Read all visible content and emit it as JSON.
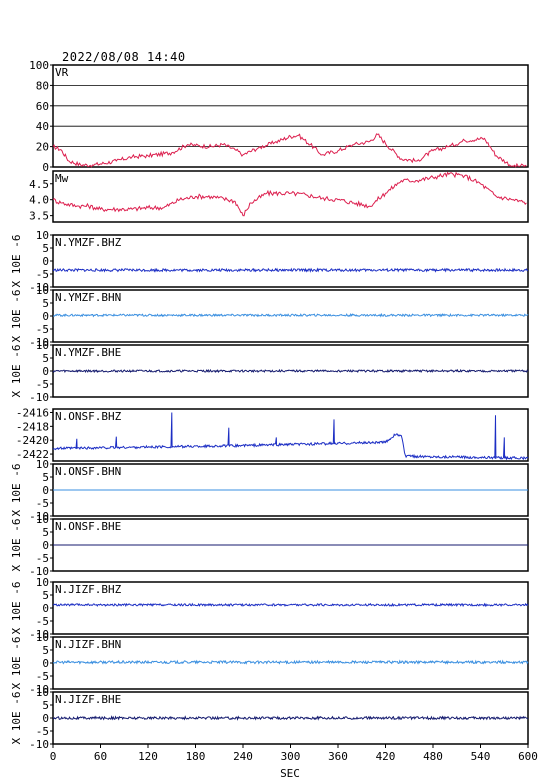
{
  "header": {
    "timestamp": "2022/08/08 14:40"
  },
  "chart_data": {
    "type": "line",
    "xlabel": "SEC",
    "xlim": [
      0,
      600
    ],
    "x_ticks": [
      0,
      60,
      120,
      180,
      240,
      300,
      360,
      420,
      480,
      540,
      600
    ],
    "panels": [
      {
        "label": "VR",
        "color": "#dc1f4e",
        "ylim": [
          0,
          100
        ],
        "y_ticks": [
          0,
          20,
          40,
          60,
          80,
          100
        ],
        "grid": true,
        "x": [
          0,
          10,
          20,
          35,
          50,
          60,
          80,
          100,
          120,
          150,
          170,
          180,
          200,
          215,
          230,
          240,
          260,
          280,
          300,
          310,
          325,
          340,
          360,
          380,
          400,
          410,
          420,
          440,
          460,
          480,
          500,
          520,
          545,
          560,
          580,
          598
        ],
        "y": [
          20,
          17,
          6,
          2,
          2,
          3,
          6,
          10,
          11,
          14,
          22,
          21,
          20,
          22,
          17,
          12,
          19,
          24,
          30,
          31,
          22,
          12,
          16,
          22,
          25,
          32,
          23,
          8,
          6,
          16,
          20,
          26,
          28,
          11,
          1,
          1
        ]
      },
      {
        "label": "Mw",
        "color": "#dc1f4e",
        "ylim": [
          3.3,
          4.9
        ],
        "y_ticks": [
          3.5,
          4.0,
          4.5
        ],
        "y_tick_labels": [
          "3.5",
          "4.0",
          "4.5"
        ],
        "grid": false,
        "x": [
          0,
          10,
          30,
          45,
          60,
          80,
          100,
          120,
          140,
          160,
          180,
          200,
          220,
          230,
          240,
          250,
          270,
          300,
          320,
          340,
          360,
          380,
          400,
          420,
          440,
          460,
          480,
          500,
          520,
          540,
          560,
          580,
          598
        ],
        "y": [
          4.0,
          3.9,
          3.8,
          3.8,
          3.7,
          3.7,
          3.7,
          3.75,
          3.75,
          4.0,
          4.1,
          4.1,
          4.0,
          3.95,
          3.5,
          3.9,
          4.2,
          4.2,
          4.15,
          4.05,
          4.0,
          3.9,
          3.8,
          4.2,
          4.6,
          4.6,
          4.7,
          4.8,
          4.75,
          4.5,
          4.1,
          4.0,
          3.9
        ]
      },
      {
        "label": "N.YMZF.BHZ",
        "color": "#1c2ec4",
        "ylim": [
          -10,
          10
        ],
        "y_ticks": [
          -10,
          -5,
          0,
          5,
          10
        ],
        "y_tick_labels": [
          "-10",
          "-5",
          "0",
          "5",
          "10"
        ],
        "unit": "X 10E -6",
        "baseline": -3.5,
        "amp": 0.5
      },
      {
        "label": "N.YMZF.BHN",
        "color": "#3a8fe0",
        "ylim": [
          -10,
          10
        ],
        "y_ticks": [
          -10,
          -5,
          0,
          5,
          10
        ],
        "y_tick_labels": [
          "-10",
          "-5",
          "0",
          "5",
          "10"
        ],
        "unit": "X 10E -6",
        "baseline": 0.3,
        "amp": 0.4
      },
      {
        "label": "N.YMZF.BHE",
        "color": "#141a6e",
        "ylim": [
          -10,
          10
        ],
        "y_ticks": [
          -10,
          -5,
          0,
          5,
          10
        ],
        "y_tick_labels": [
          "-10",
          "-5",
          "0",
          "5",
          "10"
        ],
        "unit": "X 10E -6",
        "baseline": 0.0,
        "amp": 0.4
      },
      {
        "label": "N.ONSF.BHZ",
        "color": "#1c2ec4",
        "ylim": [
          -2423,
          -2415.5
        ],
        "y_ticks": [
          -2422,
          -2420,
          -2418,
          -2416
        ],
        "y_tick_labels": [
          "-2422",
          "-2420",
          "-2418",
          "-2416"
        ],
        "unit": "",
        "baseline": -2421.2,
        "amp": 0.15
      },
      {
        "label": "N.ONSF.BHN",
        "color": "#3a8fe0",
        "ylim": [
          -10,
          10
        ],
        "y_ticks": [
          -10,
          -5,
          0,
          5,
          10
        ],
        "y_tick_labels": [
          "-10",
          "-5",
          "0",
          "5",
          "10"
        ],
        "unit": "X 10E -6",
        "baseline": 0.0,
        "amp": 0.0
      },
      {
        "label": "N.ONSF.BHE",
        "color": "#141a6e",
        "ylim": [
          -10,
          10
        ],
        "y_ticks": [
          -10,
          -5,
          0,
          5,
          10
        ],
        "y_tick_labels": [
          "-10",
          "-5",
          "0",
          "5",
          "10"
        ],
        "unit": "X 10E -6",
        "baseline": 0.0,
        "amp": 0.0
      },
      {
        "label": "N.JIZF.BHZ",
        "color": "#1c2ec4",
        "ylim": [
          -10,
          10
        ],
        "y_ticks": [
          -10,
          -5,
          0,
          5,
          10
        ],
        "y_tick_labels": [
          "-10",
          "-5",
          "0",
          "5",
          "10"
        ],
        "unit": "X 10E -6",
        "baseline": 1.2,
        "amp": 0.4
      },
      {
        "label": "N.JIZF.BHN",
        "color": "#3a8fe0",
        "ylim": [
          -10,
          10
        ],
        "y_ticks": [
          -10,
          -5,
          0,
          5,
          10
        ],
        "y_tick_labels": [
          "-10",
          "-5",
          "0",
          "5",
          "10"
        ],
        "unit": "X 10E -6",
        "baseline": 0.3,
        "amp": 0.5
      },
      {
        "label": "N.JIZF.BHE",
        "color": "#141a6e",
        "ylim": [
          -10,
          10
        ],
        "y_ticks": [
          -10,
          -5,
          0,
          5,
          10
        ],
        "y_tick_labels": [
          "-10",
          "-5",
          "0",
          "5",
          "10"
        ],
        "unit": "X 10E -6",
        "baseline": 0.0,
        "amp": 0.5
      }
    ],
    "onsf_bhz_events": {
      "spikes": [
        [
          30,
          -2419.8
        ],
        [
          80,
          -2419.5
        ],
        [
          150,
          -2416.0
        ],
        [
          222,
          -2418.2
        ],
        [
          282,
          -2419.6
        ],
        [
          355,
          -2417.0
        ],
        [
          559,
          -2416.4
        ],
        [
          570,
          -2419.6
        ]
      ],
      "steps": [
        [
          0,
          -2421.2
        ],
        [
          230,
          -2420.8
        ],
        [
          420,
          -2420.3
        ],
        [
          432,
          -2419.2
        ],
        [
          440,
          -2419.3
        ],
        [
          445,
          -2422.3
        ],
        [
          600,
          -2422.6
        ]
      ]
    }
  }
}
